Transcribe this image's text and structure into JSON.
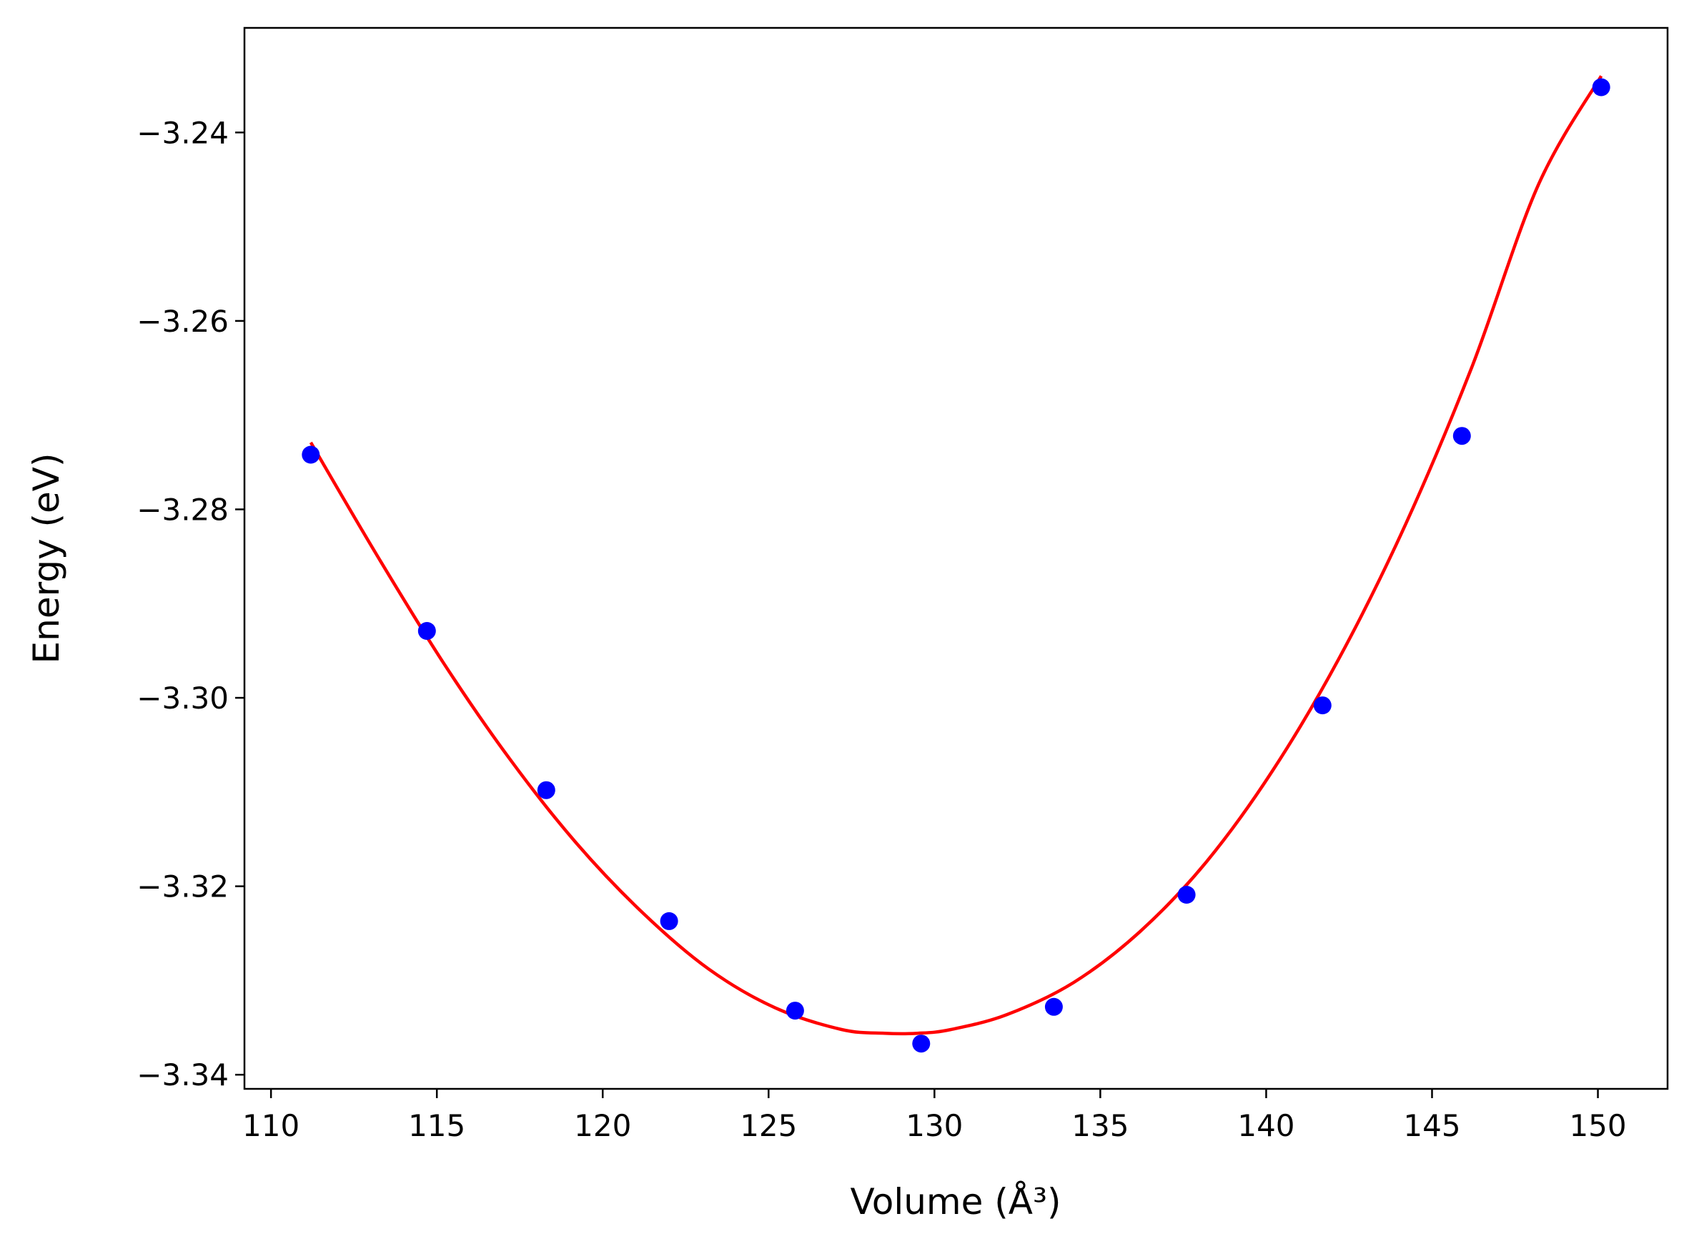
{
  "chart_data": {
    "type": "scatter",
    "title": "",
    "xlabel": "Volume (Å³)",
    "ylabel": "Energy (eV)",
    "xlim": [
      109.2,
      152.1
    ],
    "ylim": [
      -3.3415,
      -3.2289
    ],
    "xticks": [
      110,
      115,
      120,
      125,
      130,
      135,
      140,
      145,
      150
    ],
    "yticks": [
      -3.34,
      -3.32,
      -3.3,
      -3.28,
      -3.26,
      -3.24
    ],
    "xtick_labels": [
      "110",
      "115",
      "120",
      "125",
      "130",
      "135",
      "140",
      "145",
      "150"
    ],
    "ytick_labels": [
      "−3.34",
      "−3.32",
      "−3.30",
      "−3.28",
      "−3.26",
      "−3.24"
    ],
    "grid": false,
    "legend": "none",
    "series": [
      {
        "kind": "points",
        "color": "#0000ff",
        "x": [
          111.2,
          114.7,
          118.3,
          122.0,
          125.8,
          129.6,
          133.6,
          137.6,
          141.7,
          145.9,
          150.1
        ],
        "y": [
          -3.2742,
          -3.2929,
          -3.3098,
          -3.3237,
          -3.3332,
          -3.3367,
          -3.3328,
          -3.3209,
          -3.3008,
          -3.2722,
          -3.2352
        ]
      },
      {
        "kind": "fit-curve",
        "color": "#ff0000",
        "x": [
          111.2,
          113.2,
          115.2,
          117.2,
          119.2,
          121.2,
          123.2,
          125.2,
          127.2,
          128.5,
          129.5,
          130.5,
          132.2,
          134.2,
          136.2,
          138.2,
          140.2,
          142.2,
          144.2,
          146.2,
          148.2,
          150.1
        ],
        "y": [
          -3.2729,
          -3.2849,
          -3.2963,
          -3.3065,
          -3.3154,
          -3.3228,
          -3.3288,
          -3.3329,
          -3.3352,
          -3.3356,
          -3.3356,
          -3.3352,
          -3.3336,
          -3.3302,
          -3.3248,
          -3.3174,
          -3.3077,
          -3.2958,
          -3.2816,
          -3.2649,
          -3.2456,
          -3.234
        ]
      }
    ]
  }
}
